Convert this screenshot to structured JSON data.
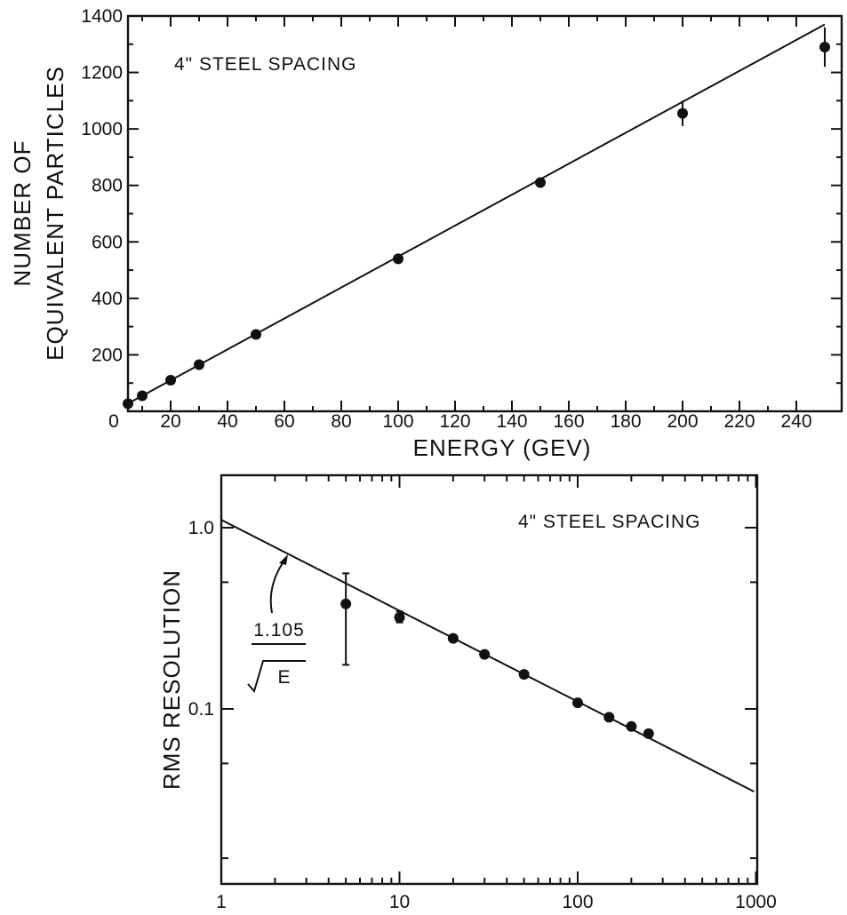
{
  "chart_data": [
    {
      "type": "scatter",
      "title": "",
      "annotation": "4\" STEEL SPACING",
      "xlabel": "ENERGY (GEV)",
      "ylabel_lines": [
        "NUMBER OF",
        "EQUIVALENT PARTICLES"
      ],
      "xlim": [
        0,
        250
      ],
      "ylim": [
        0,
        1400
      ],
      "xticks": [
        20,
        40,
        60,
        80,
        100,
        120,
        140,
        160,
        180,
        200,
        220,
        240
      ],
      "yticks": [
        0,
        200,
        400,
        600,
        800,
        1000,
        1200,
        1400
      ],
      "x_origin_label": "0",
      "grid": false,
      "series": [
        {
          "x": [
            5,
            10,
            20,
            30,
            50,
            100,
            150,
            200,
            250
          ],
          "y": [
            27,
            55,
            110,
            165,
            272,
            540,
            810,
            1055,
            1290
          ],
          "yerr": [
            0,
            0,
            0,
            0,
            0,
            0,
            0,
            45,
            70
          ]
        }
      ],
      "fit_line": {
        "x": [
          0,
          250
        ],
        "y": [
          0,
          1370
        ]
      }
    },
    {
      "type": "scatter",
      "title": "",
      "annotation": "4\" STEEL SPACING",
      "xlabel": "",
      "ylabel": "RMS RESOLUTION",
      "xscale": "log",
      "yscale": "log",
      "xlim": [
        1,
        1000
      ],
      "ylim": [
        0.01,
        2
      ],
      "xticks": [
        "1",
        "10",
        "100",
        "1000"
      ],
      "yticks": [
        "1.0",
        "0.1"
      ],
      "grid": false,
      "series": [
        {
          "x": [
            5,
            10,
            20,
            30,
            50,
            100,
            150,
            200,
            250
          ],
          "y": [
            0.38,
            0.32,
            0.245,
            0.2,
            0.155,
            0.108,
            0.09,
            0.08,
            0.073
          ],
          "yerr_low": [
            0.175,
            0.3,
            0.245,
            0.2,
            0.155,
            0.108,
            0.09,
            0.08,
            0.073
          ],
          "yerr_high": [
            0.56,
            0.345,
            0.245,
            0.2,
            0.155,
            0.108,
            0.09,
            0.08,
            0.073
          ]
        }
      ],
      "fit_label": {
        "numerator": "1.105",
        "denominator": "E"
      },
      "fit_line": {
        "coefficient": 1.105,
        "exponent": -0.5,
        "x": [
          1,
          1000
        ]
      }
    }
  ]
}
